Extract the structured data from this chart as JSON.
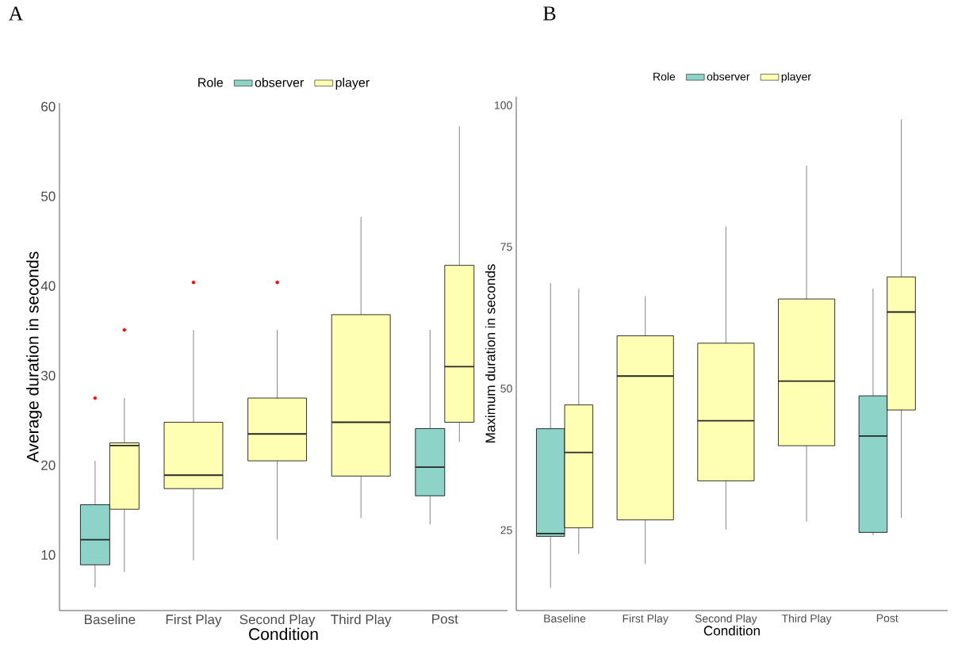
{
  "chart_data": [
    {
      "type": "box",
      "title": "A",
      "xlabel": "Condition",
      "ylabel": "Average duration in seconds",
      "legend_title": "Role",
      "legend": "top",
      "categories": [
        "Baseline",
        "First Play",
        "Second Play",
        "Third Play",
        "Post"
      ],
      "ylim": [
        3.8,
        60.4
      ],
      "yticks": [
        10,
        20,
        30,
        40,
        50,
        60
      ],
      "series": [
        {
          "name": "observer",
          "color": "#8dd3c7",
          "boxes": [
            {
              "low": 6.4,
              "q1": 8.9,
              "median": 11.7,
              "q3": 15.6,
              "high": 20.5,
              "outliers": [
                27.5
              ]
            },
            null,
            null,
            null,
            {
              "low": 13.4,
              "q1": 16.6,
              "median": 19.8,
              "q3": 24.1,
              "high": 35.1
            }
          ]
        },
        {
          "name": "player",
          "color": "#ffffb3",
          "boxes": [
            {
              "low": 8.1,
              "q1": 15.1,
              "median": 22.2,
              "q3": 22.5,
              "high": 27.5,
              "outliers": [
                35.1
              ]
            },
            {
              "low": 9.4,
              "q1": 17.4,
              "median": 18.9,
              "q3": 24.8,
              "high": 35.1,
              "outliers": [
                40.4
              ]
            },
            {
              "low": 11.7,
              "q1": 20.5,
              "median": 23.5,
              "q3": 27.5,
              "high": 35.1,
              "outliers": [
                40.4
              ]
            },
            {
              "low": 14.1,
              "q1": 18.8,
              "median": 24.8,
              "q3": 36.8,
              "high": 47.7
            },
            {
              "low": 22.6,
              "q1": 24.8,
              "median": 31.0,
              "q3": 42.3,
              "high": 57.8
            }
          ]
        }
      ]
    },
    {
      "type": "box",
      "title": "B",
      "xlabel": "Condition",
      "ylabel": "Maximum duration in seconds",
      "legend_title": "Role",
      "legend": "top",
      "categories": [
        "Baseline",
        "First Play",
        "Second Play",
        "Third Play",
        "Post"
      ],
      "ylim": [
        10.8,
        101.5
      ],
      "yticks": [
        25,
        50,
        75,
        100
      ],
      "series": [
        {
          "name": "observer",
          "color": "#8dd3c7",
          "boxes": [
            {
              "low": 14.8,
              "q1": 23.9,
              "median": 24.4,
              "q3": 42.9,
              "high": 68.6
            },
            null,
            null,
            null,
            {
              "low": 24.1,
              "q1": 24.6,
              "median": 41.6,
              "q3": 48.7,
              "high": 67.6
            }
          ]
        },
        {
          "name": "player",
          "color": "#ffffb3",
          "boxes": [
            {
              "low": 20.8,
              "q1": 25.4,
              "median": 38.7,
              "q3": 47.1,
              "high": 67.6
            },
            {
              "low": 19.0,
              "q1": 26.8,
              "median": 52.2,
              "q3": 59.3,
              "high": 66.3
            },
            {
              "low": 25.1,
              "q1": 33.7,
              "median": 44.3,
              "q3": 58.0,
              "high": 78.6
            },
            {
              "low": 26.5,
              "q1": 39.9,
              "median": 51.3,
              "q3": 65.8,
              "high": 89.3
            },
            {
              "low": 27.2,
              "q1": 46.2,
              "median": 63.5,
              "q3": 69.7,
              "high": 97.5
            }
          ]
        }
      ]
    }
  ]
}
